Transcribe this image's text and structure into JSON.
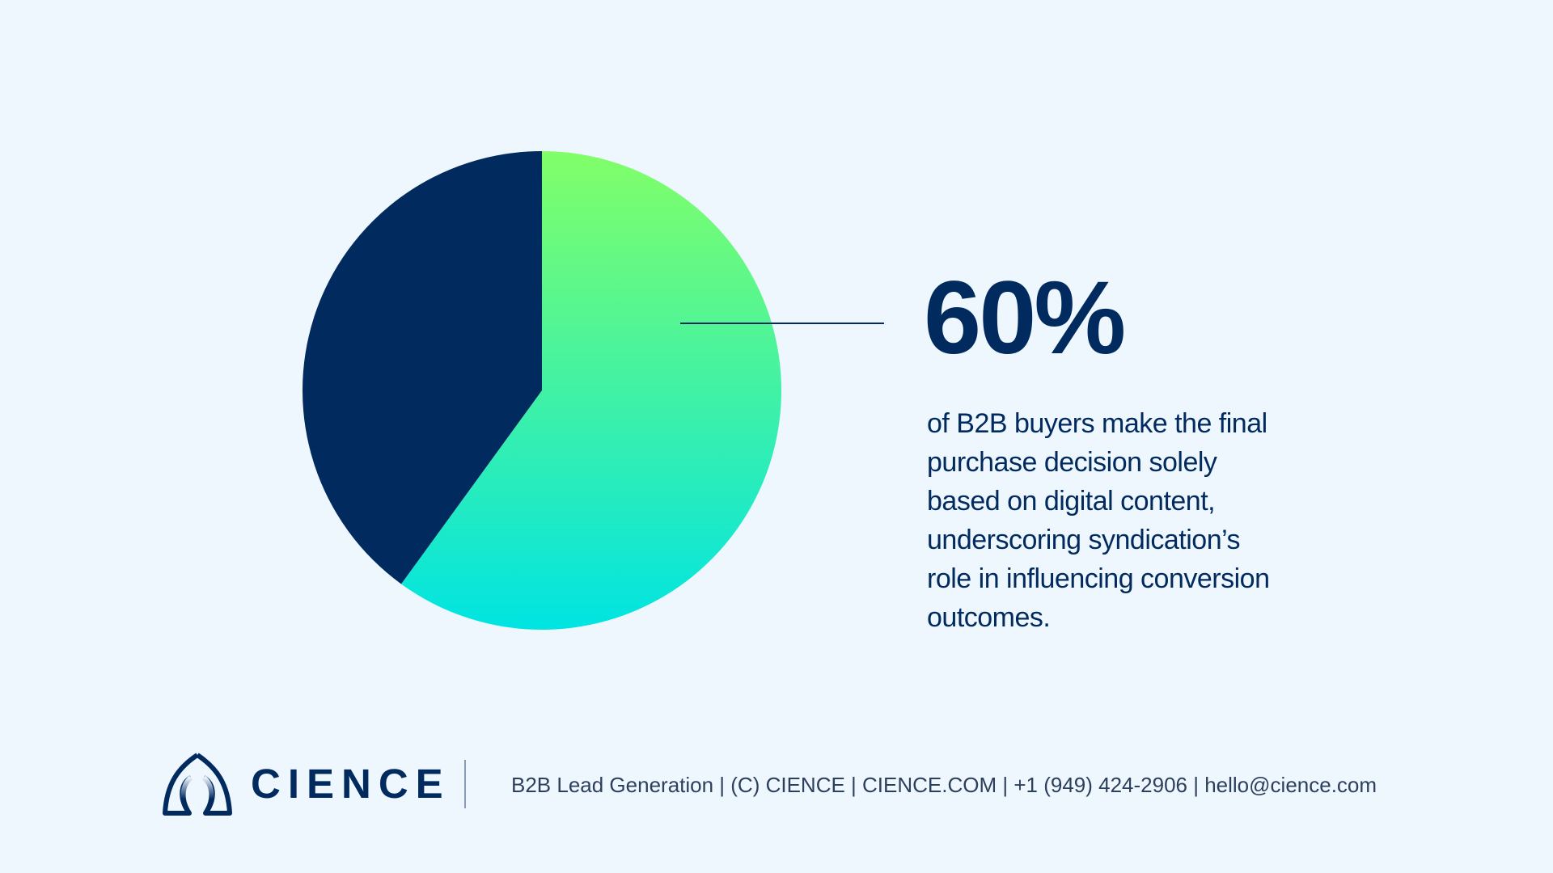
{
  "chart_data": {
    "type": "pie",
    "slices": [
      {
        "value": 60,
        "color_top": "#82FF68",
        "color_bottom": "#00E4E2"
      },
      {
        "value": 40,
        "color": "#012A5E"
      }
    ],
    "callout": {
      "value": "60%",
      "description_lines": [
        "of B2B buyers make the final",
        "purchase decision solely",
        "based on digital content,",
        "underscoring syndication’s",
        "role in influencing conversion",
        "outcomes."
      ]
    }
  },
  "footer": {
    "brand": "CIENCE",
    "logo_icon": "cience-leaf-logo",
    "info": "B2B Lead Generation | (C) CIENCE | CIENCE.COM | +1 (949) 424-2906 | hello@cience.com"
  },
  "colors": {
    "background": "#EEF6FE",
    "navy": "#012A5E"
  }
}
